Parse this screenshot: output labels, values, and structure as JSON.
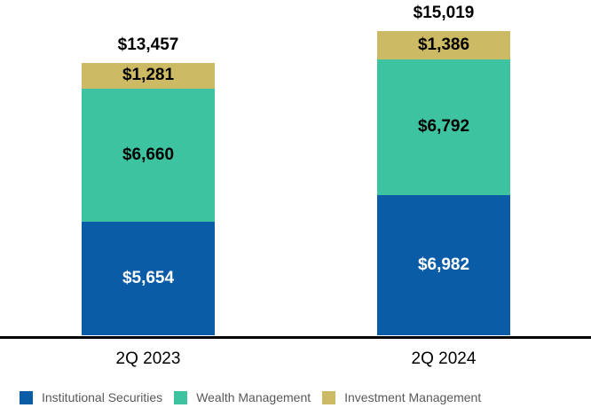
{
  "chart_data": {
    "type": "bar",
    "stacked": true,
    "title": "",
    "xlabel": "",
    "ylabel": "",
    "categories": [
      "2Q 2023",
      "2Q 2024"
    ],
    "series": [
      {
        "name": "Institutional Securities",
        "color": "#0A5CA6",
        "label_color": "#ffffff",
        "values": [
          5654,
          6982
        ],
        "labels": [
          "$5,654",
          "$6,982"
        ]
      },
      {
        "name": "Wealth Management",
        "color": "#3EC3A1",
        "label_color": "#000000",
        "values": [
          6660,
          6792
        ],
        "labels": [
          "$6,660",
          "$6,792"
        ]
      },
      {
        "name": "Investment Management",
        "color": "#CDBA64",
        "label_color": "#000000",
        "values": [
          1281,
          1386
        ],
        "labels": [
          "$1,281",
          "$1,386"
        ]
      }
    ],
    "totals": {
      "values": [
        13457,
        15019
      ],
      "labels": [
        "$13,457",
        "$15,019"
      ]
    },
    "legend": [
      "Institutional Securities",
      "Wealth Management",
      "Investment Management"
    ],
    "legend_position": "bottom",
    "legend_text_color": "#595959",
    "axis": {
      "baseline_color": "#000000",
      "gridlines": false
    },
    "ylim": [
      0,
      15500
    ]
  }
}
